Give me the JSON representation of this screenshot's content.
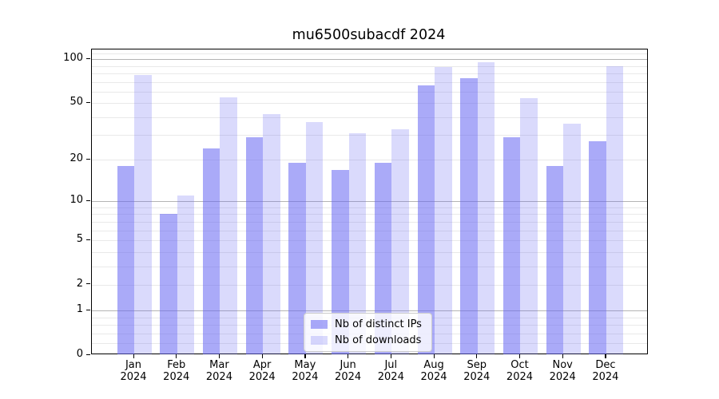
{
  "chart_data": {
    "type": "bar",
    "title": "mu6500subacdf 2024",
    "categories": [
      "Jan",
      "Feb",
      "Mar",
      "Apr",
      "May",
      "Jun",
      "Jul",
      "Aug",
      "Sep",
      "Oct",
      "Nov",
      "Dec"
    ],
    "year_label": "2024",
    "series": [
      {
        "name": "Nb of distinct IPs",
        "values": [
          18,
          8,
          24,
          29,
          19,
          17,
          19,
          66,
          74,
          29,
          18,
          27
        ],
        "color": "rgba(100,100,243,0.55)"
      },
      {
        "name": "Nb of downloads",
        "values": [
          78,
          11,
          55,
          42,
          37,
          31,
          33,
          88,
          95,
          54,
          36,
          90
        ],
        "color": "rgba(100,100,243,0.24)"
      }
    ],
    "yscale": "log10(value+1)",
    "ylim": [
      0,
      117
    ],
    "yticks": [
      0,
      1,
      2,
      5,
      10,
      20,
      50,
      100
    ],
    "grid": {
      "major": [
        1,
        10,
        100
      ],
      "minor": [
        0.2,
        0.4,
        0.6,
        0.8,
        2,
        3,
        4,
        5,
        6,
        7,
        8,
        9,
        20,
        30,
        40,
        50,
        60,
        70,
        80,
        90,
        110
      ],
      "major_color": "#b4b4b4",
      "minor_color": "#e9e9e9"
    },
    "legend_position": "lower center",
    "colors": {
      "axis": "#000000",
      "background": "#ffffff"
    }
  }
}
